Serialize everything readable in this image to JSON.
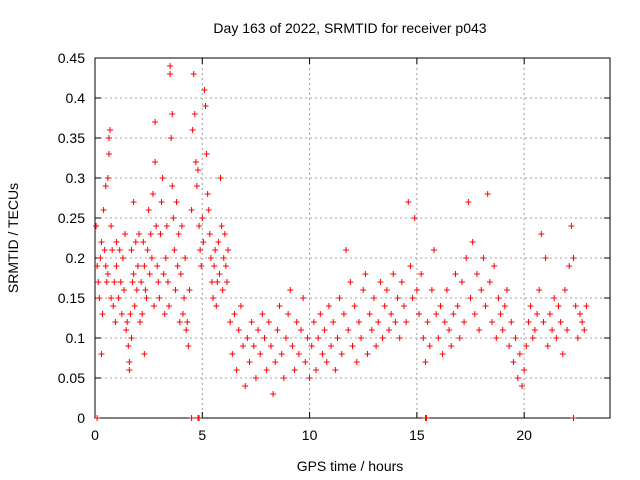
{
  "chart_data": {
    "type": "scatter",
    "title": "Day 163 of 2022, SRMTID for receiver p043",
    "xlabel": "GPS time / hours",
    "ylabel": "SRMTID / TECUs",
    "xlim": [
      0,
      24
    ],
    "ylim": [
      0,
      0.45
    ],
    "xticks": [
      0,
      5,
      10,
      15,
      20
    ],
    "xtick_labels": [
      "0",
      "5",
      "10",
      "15",
      "20"
    ],
    "yticks": [
      0,
      0.05,
      0.1,
      0.15,
      0.2,
      0.25,
      0.3,
      0.35,
      0.4,
      0.45
    ],
    "ytick_labels": [
      "0",
      "0.05",
      "0.1",
      "0.15",
      "0.2",
      "0.25",
      "0.3",
      "0.35",
      "0.4",
      "0.45"
    ],
    "grid": true,
    "marker": "plus",
    "color": "#ff0000",
    "series": [
      {
        "name": "SRMTID",
        "points": [
          [
            0.05,
            0.24
          ],
          [
            0.1,
            0.19
          ],
          [
            0.15,
            0.17
          ],
          [
            0.2,
            0.15
          ],
          [
            0.25,
            0.2
          ],
          [
            0.3,
            0.22
          ],
          [
            0.3,
            0.08
          ],
          [
            0.35,
            0.13
          ],
          [
            0.4,
            0.26
          ],
          [
            0.45,
            0.21
          ],
          [
            0.5,
            0.19
          ],
          [
            0.5,
            0.29
          ],
          [
            0.55,
            0.17
          ],
          [
            0.6,
            0.3
          ],
          [
            0.6,
            0.18
          ],
          [
            0.65,
            0.35
          ],
          [
            0.65,
            0.33
          ],
          [
            0.7,
            0.36
          ],
          [
            0.75,
            0.15
          ],
          [
            0.75,
            0.24
          ],
          [
            0.8,
            0.21
          ],
          [
            0.85,
            0.14
          ],
          [
            0.9,
            0.17
          ],
          [
            0.95,
            0.12
          ],
          [
            1.0,
            0.22
          ],
          [
            1.0,
            0.19
          ],
          [
            1.1,
            0.15
          ],
          [
            1.15,
            0.21
          ],
          [
            1.2,
            0.17
          ],
          [
            1.25,
            0.13
          ],
          [
            1.3,
            0.2
          ],
          [
            1.35,
            0.16
          ],
          [
            1.4,
            0.23
          ],
          [
            1.45,
            0.11
          ],
          [
            1.5,
            0.12
          ],
          [
            1.55,
            0.09
          ],
          [
            1.6,
            0.07
          ],
          [
            1.6,
            0.06
          ],
          [
            1.65,
            0.13
          ],
          [
            1.7,
            0.1
          ],
          [
            1.7,
            0.21
          ],
          [
            1.75,
            0.17
          ],
          [
            1.8,
            0.27
          ],
          [
            1.8,
            0.18
          ],
          [
            1.85,
            0.14
          ],
          [
            1.9,
            0.22
          ],
          [
            1.95,
            0.16
          ],
          [
            2.0,
            0.19
          ],
          [
            2.05,
            0.23
          ],
          [
            2.1,
            0.12
          ],
          [
            2.15,
            0.17
          ],
          [
            2.2,
            0.13
          ],
          [
            2.25,
            0.22
          ],
          [
            2.3,
            0.08
          ],
          [
            2.3,
            0.19
          ],
          [
            2.35,
            0.16
          ],
          [
            2.4,
            0.15
          ],
          [
            2.45,
            0.21
          ],
          [
            2.5,
            0.26
          ],
          [
            2.55,
            0.18
          ],
          [
            2.6,
            0.23
          ],
          [
            2.65,
            0.2
          ],
          [
            2.7,
            0.28
          ],
          [
            2.75,
            0.14
          ],
          [
            2.8,
            0.37
          ],
          [
            2.8,
            0.32
          ],
          [
            2.85,
            0.24
          ],
          [
            2.9,
            0.19
          ],
          [
            2.95,
            0.17
          ],
          [
            3.0,
            0.15
          ],
          [
            3.05,
            0.23
          ],
          [
            3.1,
            0.27
          ],
          [
            3.15,
            0.3
          ],
          [
            3.2,
            0.18
          ],
          [
            3.25,
            0.13
          ],
          [
            3.3,
            0.2
          ],
          [
            3.35,
            0.24
          ],
          [
            3.4,
            0.17
          ],
          [
            3.45,
            0.14
          ],
          [
            3.5,
            0.44
          ],
          [
            3.5,
            0.43
          ],
          [
            3.55,
            0.35
          ],
          [
            3.6,
            0.38
          ],
          [
            3.6,
            0.29
          ],
          [
            3.65,
            0.25
          ],
          [
            3.7,
            0.21
          ],
          [
            3.75,
            0.16
          ],
          [
            3.8,
            0.27
          ],
          [
            3.85,
            0.19
          ],
          [
            3.9,
            0.23
          ],
          [
            3.95,
            0.12
          ],
          [
            4.0,
            0.18
          ],
          [
            4.05,
            0.24
          ],
          [
            4.1,
            0.13
          ],
          [
            4.15,
            0.15
          ],
          [
            4.2,
            0.2
          ],
          [
            4.25,
            0.11
          ],
          [
            4.3,
            0.12
          ],
          [
            4.35,
            0.09
          ],
          [
            4.4,
            0.16
          ],
          [
            4.5,
            0.26
          ],
          [
            4.55,
            0.36
          ],
          [
            4.6,
            0.43
          ],
          [
            4.65,
            0.38
          ],
          [
            4.7,
            0.32
          ],
          [
            4.75,
            0.29
          ],
          [
            4.8,
            0.31
          ],
          [
            4.85,
            0.24
          ],
          [
            4.9,
            0.21
          ],
          [
            4.95,
            0.19
          ],
          [
            5.0,
            0.25
          ],
          [
            5.05,
            0.22
          ],
          [
            5.1,
            0.41
          ],
          [
            5.15,
            0.39
          ],
          [
            5.2,
            0.33
          ],
          [
            5.25,
            0.28
          ],
          [
            5.3,
            0.26
          ],
          [
            5.35,
            0.23
          ],
          [
            5.4,
            0.2
          ],
          [
            5.45,
            0.17
          ],
          [
            5.5,
            0.15
          ],
          [
            5.55,
            0.19
          ],
          [
            5.6,
            0.21
          ],
          [
            5.65,
            0.14
          ],
          [
            5.7,
            0.17
          ],
          [
            5.75,
            0.22
          ],
          [
            5.8,
            0.18
          ],
          [
            5.85,
            0.3
          ],
          [
            5.9,
            0.24
          ],
          [
            5.95,
            0.16
          ],
          [
            6.0,
            0.2
          ],
          [
            6.05,
            0.23
          ],
          [
            6.1,
            0.19
          ],
          [
            6.15,
            0.17
          ],
          [
            6.2,
            0.21
          ],
          [
            6.3,
            0.12
          ],
          [
            6.4,
            0.08
          ],
          [
            6.5,
            0.13
          ],
          [
            6.6,
            0.06
          ],
          [
            6.7,
            0.11
          ],
          [
            6.8,
            0.14
          ],
          [
            6.9,
            0.09
          ],
          [
            7.0,
            0.04
          ],
          [
            7.1,
            0.1
          ],
          [
            7.2,
            0.07
          ],
          [
            7.3,
            0.12
          ],
          [
            7.4,
            0.09
          ],
          [
            7.5,
            0.05
          ],
          [
            7.6,
            0.11
          ],
          [
            7.7,
            0.08
          ],
          [
            7.8,
            0.13
          ],
          [
            7.9,
            0.1
          ],
          [
            8.0,
            0.06
          ],
          [
            8.1,
            0.12
          ],
          [
            8.2,
            0.09
          ],
          [
            8.3,
            0.03
          ],
          [
            8.4,
            0.07
          ],
          [
            8.5,
            0.11
          ],
          [
            8.6,
            0.14
          ],
          [
            8.7,
            0.08
          ],
          [
            8.8,
            0.05
          ],
          [
            8.9,
            0.1
          ],
          [
            9.0,
            0.13
          ],
          [
            9.1,
            0.16
          ],
          [
            9.2,
            0.09
          ],
          [
            9.3,
            0.06
          ],
          [
            9.4,
            0.12
          ],
          [
            9.5,
            0.08
          ],
          [
            9.6,
            0.11
          ],
          [
            9.7,
            0.15
          ],
          [
            9.8,
            0.07
          ],
          [
            9.9,
            0.1
          ],
          [
            10.0,
            0.05
          ],
          [
            10.1,
            0.09
          ],
          [
            10.2,
            0.12
          ],
          [
            10.3,
            0.06
          ],
          [
            10.4,
            0.1
          ],
          [
            10.5,
            0.13
          ],
          [
            10.6,
            0.08
          ],
          [
            10.7,
            0.11
          ],
          [
            10.8,
            0.07
          ],
          [
            10.9,
            0.14
          ],
          [
            11.0,
            0.09
          ],
          [
            11.1,
            0.12
          ],
          [
            11.2,
            0.06
          ],
          [
            11.3,
            0.1
          ],
          [
            11.4,
            0.15
          ],
          [
            11.5,
            0.08
          ],
          [
            11.6,
            0.13
          ],
          [
            11.7,
            0.21
          ],
          [
            11.8,
            0.11
          ],
          [
            11.9,
            0.17
          ],
          [
            12.0,
            0.09
          ],
          [
            12.1,
            0.14
          ],
          [
            12.2,
            0.07
          ],
          [
            12.3,
            0.12
          ],
          [
            12.4,
            0.1
          ],
          [
            12.5,
            0.16
          ],
          [
            12.6,
            0.18
          ],
          [
            12.7,
            0.08
          ],
          [
            12.8,
            0.13
          ],
          [
            12.9,
            0.11
          ],
          [
            13.0,
            0.15
          ],
          [
            13.1,
            0.09
          ],
          [
            13.2,
            0.12
          ],
          [
            13.3,
            0.17
          ],
          [
            13.4,
            0.1
          ],
          [
            13.5,
            0.14
          ],
          [
            13.6,
            0.16
          ],
          [
            13.7,
            0.11
          ],
          [
            13.8,
            0.13
          ],
          [
            13.9,
            0.18
          ],
          [
            14.0,
            0.12
          ],
          [
            14.1,
            0.15
          ],
          [
            14.2,
            0.1
          ],
          [
            14.3,
            0.17
          ],
          [
            14.4,
            0.14
          ],
          [
            14.5,
            0.12
          ],
          [
            14.6,
            0.27
          ],
          [
            14.7,
            0.19
          ],
          [
            14.8,
            0.15
          ],
          [
            14.9,
            0.25
          ],
          [
            15.0,
            0.16
          ],
          [
            15.1,
            0.13
          ],
          [
            15.2,
            0.18
          ],
          [
            15.3,
            0.1
          ],
          [
            15.4,
            0.07
          ],
          [
            15.5,
            0.12
          ],
          [
            15.6,
            0.09
          ],
          [
            15.7,
            0.16
          ],
          [
            15.8,
            0.21
          ],
          [
            15.9,
            0.13
          ],
          [
            16.0,
            0.1
          ],
          [
            16.1,
            0.14
          ],
          [
            16.2,
            0.08
          ],
          [
            16.3,
            0.12
          ],
          [
            16.4,
            0.16
          ],
          [
            16.5,
            0.11
          ],
          [
            16.6,
            0.09
          ],
          [
            16.7,
            0.13
          ],
          [
            16.8,
            0.18
          ],
          [
            16.9,
            0.14
          ],
          [
            17.0,
            0.1
          ],
          [
            17.1,
            0.17
          ],
          [
            17.2,
            0.12
          ],
          [
            17.3,
            0.2
          ],
          [
            17.4,
            0.27
          ],
          [
            17.5,
            0.15
          ],
          [
            17.6,
            0.22
          ],
          [
            17.7,
            0.13
          ],
          [
            17.8,
            0.18
          ],
          [
            17.9,
            0.11
          ],
          [
            18.0,
            0.16
          ],
          [
            18.1,
            0.2
          ],
          [
            18.2,
            0.14
          ],
          [
            18.3,
            0.28
          ],
          [
            18.4,
            0.17
          ],
          [
            18.5,
            0.12
          ],
          [
            18.6,
            0.19
          ],
          [
            18.7,
            0.1
          ],
          [
            18.8,
            0.15
          ],
          [
            18.9,
            0.13
          ],
          [
            19.0,
            0.11
          ],
          [
            19.1,
            0.14
          ],
          [
            19.2,
            0.16
          ],
          [
            19.3,
            0.09
          ],
          [
            19.4,
            0.12
          ],
          [
            19.5,
            0.07
          ],
          [
            19.6,
            0.1
          ],
          [
            19.7,
            0.05
          ],
          [
            19.8,
            0.08
          ],
          [
            19.9,
            0.04
          ],
          [
            20.0,
            0.06
          ],
          [
            20.1,
            0.09
          ],
          [
            20.2,
            0.12
          ],
          [
            20.3,
            0.14
          ],
          [
            20.4,
            0.1
          ],
          [
            20.5,
            0.11
          ],
          [
            20.6,
            0.13
          ],
          [
            20.7,
            0.16
          ],
          [
            20.8,
            0.23
          ],
          [
            20.9,
            0.12
          ],
          [
            21.0,
            0.2
          ],
          [
            21.1,
            0.09
          ],
          [
            21.2,
            0.13
          ],
          [
            21.3,
            0.11
          ],
          [
            21.4,
            0.15
          ],
          [
            21.5,
            0.1
          ],
          [
            21.6,
            0.14
          ],
          [
            21.7,
            0.12
          ],
          [
            21.8,
            0.08
          ],
          [
            21.9,
            0.16
          ],
          [
            22.0,
            0.11
          ],
          [
            22.1,
            0.19
          ],
          [
            22.2,
            0.24
          ],
          [
            22.3,
            0.2
          ],
          [
            22.4,
            0.14
          ],
          [
            22.5,
            0.1
          ],
          [
            22.6,
            0.13
          ],
          [
            22.7,
            0.12
          ],
          [
            22.8,
            0.11
          ],
          [
            22.9,
            0.14
          ],
          [
            0.1,
            0.0
          ],
          [
            4.5,
            0.0
          ],
          [
            4.8,
            0.0
          ],
          [
            4.85,
            0.0
          ],
          [
            15.4,
            0.0
          ],
          [
            15.45,
            0.0
          ],
          [
            22.3,
            0.0
          ]
        ]
      }
    ]
  }
}
